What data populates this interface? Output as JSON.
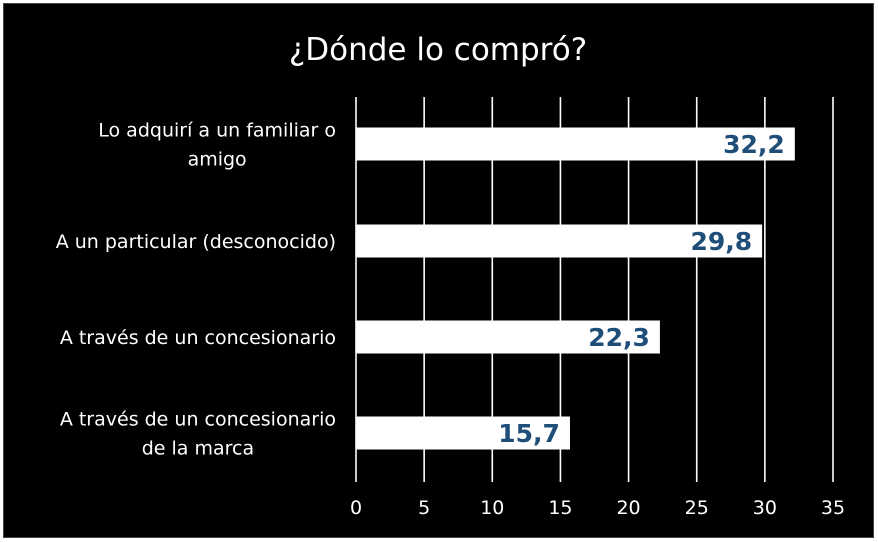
{
  "chart_data": {
    "type": "bar",
    "orientation": "horizontal",
    "title": "¿Dónde lo compró?",
    "categories": [
      [
        "Lo adquirí a un familiar o",
        "amigo"
      ],
      [
        "A un particular (desconocido)"
      ],
      [
        "A través de un concesionario"
      ],
      [
        "A través de un concesionario",
        "de la marca"
      ]
    ],
    "values": [
      32.2,
      29.8,
      22.3,
      15.7
    ],
    "value_labels": [
      "32,2",
      "29,8",
      "22,3",
      "15,7"
    ],
    "xlim": [
      0,
      35
    ],
    "xticks": [
      0,
      5,
      10,
      15,
      20,
      25,
      30,
      35
    ],
    "grid": "vertical",
    "xlabel": "",
    "ylabel": "",
    "colors": {
      "background": "#000000",
      "bar": "#ffffff",
      "grid": "#ffffff",
      "text": "#ffffff",
      "value_label": "#1f4e79"
    }
  }
}
